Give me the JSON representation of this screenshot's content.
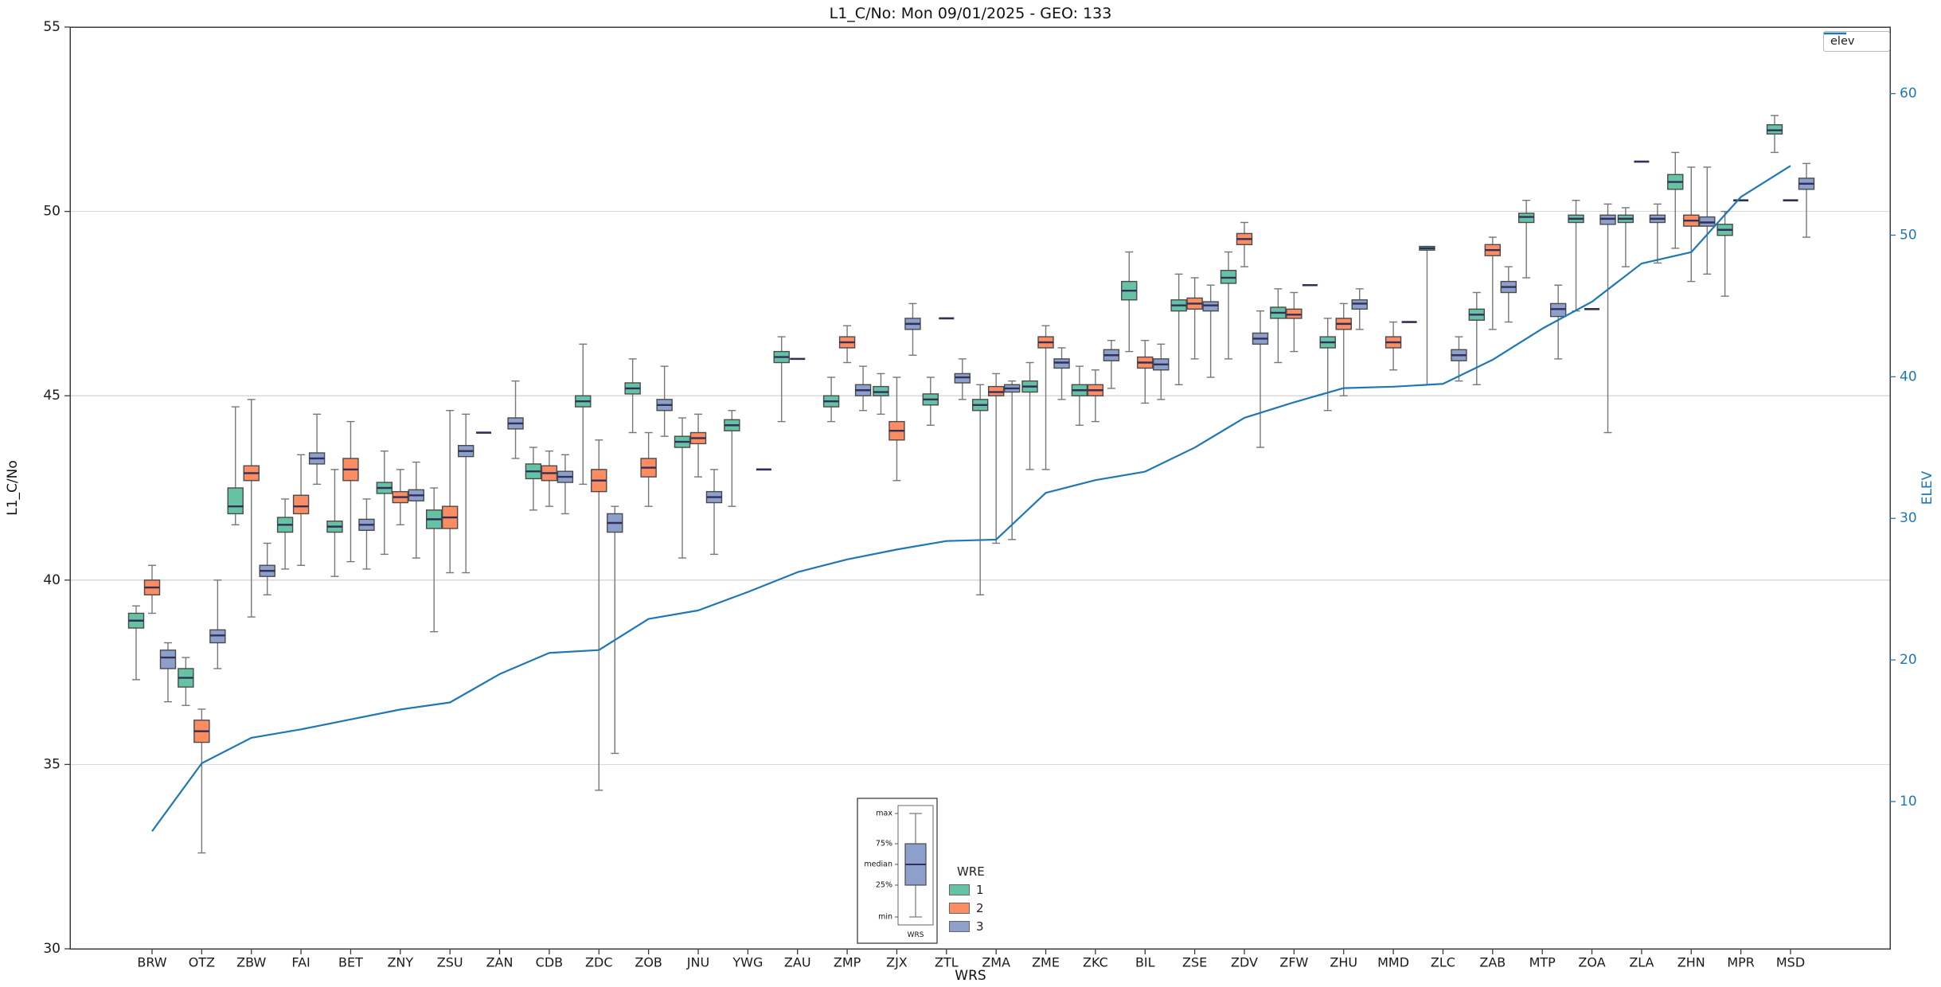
{
  "chart_data": {
    "type": "boxplot+line",
    "title": "L1_C/No: Mon 09/01/2025 - GEO: 133",
    "xlabel": "WRS",
    "ylabel_left": "L1_C/No",
    "ylabel_right": "ELEV",
    "y_left_ticks": [
      30,
      35,
      40,
      45,
      50,
      55
    ],
    "y_right_ticks": [
      10,
      20,
      30,
      40,
      50,
      60
    ],
    "y_left_range": [
      30,
      55
    ],
    "y_right_range": [
      -0.4,
      64.7
    ],
    "grid": "horizontal",
    "box_format": [
      "whisker_low",
      "q1",
      "median",
      "q3",
      "whisker_high"
    ],
    "categories": [
      "BRW",
      "OTZ",
      "ZBW",
      "FAI",
      "BET",
      "ZNY",
      "ZSU",
      "ZAN",
      "CDB",
      "ZDC",
      "ZOB",
      "JNU",
      "YWG",
      "ZAU",
      "ZMP",
      "ZJX",
      "ZTL",
      "ZMA",
      "ZME",
      "ZKC",
      "BIL",
      "ZSE",
      "ZDV",
      "ZFW",
      "ZHU",
      "MMD",
      "ZLC",
      "ZAB",
      "MTP",
      "ZOA",
      "ZLA",
      "ZHN",
      "MPR",
      "MSD"
    ],
    "series": [
      {
        "name": "WRE 1",
        "color": "#66c2a5",
        "boxes": [
          [
            37.3,
            38.7,
            38.9,
            39.1,
            39.3
          ],
          [
            36.6,
            37.1,
            37.35,
            37.6,
            37.9
          ],
          [
            41.5,
            41.8,
            42.0,
            42.5,
            44.7
          ],
          [
            40.3,
            41.3,
            41.5,
            41.7,
            42.2
          ],
          [
            40.1,
            41.3,
            41.45,
            41.6,
            43.0
          ],
          [
            40.7,
            42.35,
            42.5,
            42.65,
            43.5
          ],
          [
            38.6,
            41.4,
            41.65,
            41.9,
            42.5
          ],
          [
            44.0,
            44.0,
            44.0,
            44.0,
            44.0
          ],
          [
            41.9,
            42.75,
            42.95,
            43.15,
            43.6
          ],
          [
            42.6,
            44.7,
            44.85,
            45.0,
            46.4
          ],
          [
            44.0,
            45.05,
            45.2,
            45.35,
            46.0
          ],
          [
            40.6,
            43.6,
            43.75,
            43.9,
            44.4
          ],
          [
            42.0,
            44.05,
            44.2,
            44.35,
            44.6
          ],
          [
            44.3,
            45.9,
            46.05,
            46.2,
            46.6
          ],
          [
            44.3,
            44.7,
            44.85,
            45.0,
            45.5
          ],
          [
            44.5,
            45.0,
            45.1,
            45.25,
            45.6
          ],
          [
            44.2,
            44.75,
            44.9,
            45.05,
            45.5
          ],
          [
            39.6,
            44.6,
            44.75,
            44.9,
            45.3
          ],
          [
            43.0,
            45.1,
            45.25,
            45.4,
            45.9
          ],
          [
            44.2,
            45.0,
            45.15,
            45.3,
            45.8
          ],
          [
            46.2,
            47.6,
            47.85,
            48.1,
            48.9
          ],
          [
            45.3,
            47.3,
            47.45,
            47.6,
            48.3
          ],
          [
            46.0,
            48.05,
            48.2,
            48.4,
            48.9
          ],
          [
            45.9,
            47.1,
            47.25,
            47.4,
            47.9
          ],
          [
            44.6,
            46.3,
            46.45,
            46.6,
            47.1
          ],
          null,
          [
            45.3,
            48.95,
            49.0,
            49.05,
            49.05
          ],
          [
            45.3,
            47.05,
            47.2,
            47.35,
            47.8
          ],
          [
            48.2,
            49.7,
            49.85,
            49.95,
            50.3
          ],
          [
            47.3,
            49.7,
            49.8,
            49.9,
            50.3
          ],
          [
            48.5,
            49.7,
            49.8,
            49.9,
            50.1
          ],
          [
            49.0,
            50.6,
            50.8,
            51.0,
            51.6
          ],
          [
            47.7,
            49.35,
            49.5,
            49.65,
            50.0
          ],
          [
            51.6,
            52.1,
            52.2,
            52.35,
            52.6
          ]
        ]
      },
      {
        "name": "WRE 2",
        "color": "#fc8d62",
        "boxes": [
          [
            39.1,
            39.6,
            39.8,
            40.0,
            40.4
          ],
          [
            32.6,
            35.6,
            35.9,
            36.2,
            36.5
          ],
          [
            39.0,
            42.7,
            42.9,
            43.1,
            44.9
          ],
          [
            40.4,
            41.8,
            42.0,
            42.3,
            43.4
          ],
          [
            40.5,
            42.7,
            43.0,
            43.3,
            44.3
          ],
          [
            41.5,
            42.1,
            42.25,
            42.4,
            43.0
          ],
          [
            40.2,
            41.4,
            41.7,
            42.0,
            44.6
          ],
          null,
          [
            42.0,
            42.7,
            42.9,
            43.1,
            43.5
          ],
          [
            34.3,
            42.4,
            42.7,
            43.0,
            43.8
          ],
          [
            42.0,
            42.8,
            43.05,
            43.3,
            44.0
          ],
          [
            42.8,
            43.7,
            43.85,
            44.0,
            44.5
          ],
          null,
          [
            46.0,
            46.0,
            46.0,
            46.0,
            46.0
          ],
          [
            45.9,
            46.3,
            46.45,
            46.6,
            46.9
          ],
          [
            42.7,
            43.8,
            44.05,
            44.3,
            45.5
          ],
          [
            47.1,
            47.1,
            47.1,
            47.1,
            47.1
          ],
          [
            41.0,
            45.0,
            45.1,
            45.25,
            45.6
          ],
          [
            43.0,
            46.3,
            46.45,
            46.6,
            46.9
          ],
          [
            44.3,
            45.0,
            45.15,
            45.3,
            45.7
          ],
          [
            44.8,
            45.75,
            45.9,
            46.05,
            46.5
          ],
          [
            46.0,
            47.35,
            47.5,
            47.65,
            48.2
          ],
          [
            48.5,
            49.1,
            49.25,
            49.4,
            49.7
          ],
          [
            46.2,
            47.1,
            47.2,
            47.35,
            47.8
          ],
          [
            45.0,
            46.8,
            46.95,
            47.1,
            47.5
          ],
          [
            45.7,
            46.3,
            46.45,
            46.6,
            47.0
          ],
          null,
          [
            46.8,
            48.8,
            48.95,
            49.1,
            49.3
          ],
          null,
          [
            47.35,
            47.35,
            47.35,
            47.35,
            47.35
          ],
          [
            51.35,
            51.35,
            51.35,
            51.35,
            51.35
          ],
          [
            48.1,
            49.6,
            49.75,
            49.9,
            51.2
          ],
          [
            50.3,
            50.3,
            50.3,
            50.3,
            50.3
          ],
          [
            50.3,
            50.3,
            50.3,
            50.3,
            50.3
          ]
        ]
      },
      {
        "name": "WRE 3",
        "color": "#8da0cb",
        "boxes": [
          [
            36.7,
            37.6,
            37.9,
            38.1,
            38.3
          ],
          [
            37.6,
            38.3,
            38.5,
            38.65,
            40.0
          ],
          [
            39.6,
            40.1,
            40.25,
            40.4,
            41.0
          ],
          [
            42.6,
            43.15,
            43.3,
            43.45,
            44.5
          ],
          [
            40.3,
            41.35,
            41.5,
            41.65,
            42.2
          ],
          [
            40.6,
            42.15,
            42.3,
            42.45,
            43.2
          ],
          [
            40.2,
            43.35,
            43.5,
            43.65,
            44.5
          ],
          [
            43.3,
            44.1,
            44.25,
            44.4,
            45.4
          ],
          [
            41.8,
            42.65,
            42.8,
            42.95,
            43.4
          ],
          [
            35.3,
            41.3,
            41.55,
            41.8,
            42.0
          ],
          [
            43.9,
            44.6,
            44.75,
            44.9,
            45.8
          ],
          [
            40.7,
            42.1,
            42.25,
            42.4,
            43.0
          ],
          [
            43.0,
            43.0,
            43.0,
            43.0,
            43.0
          ],
          null,
          [
            44.6,
            45.0,
            45.15,
            45.3,
            45.8
          ],
          [
            46.1,
            46.8,
            46.95,
            47.1,
            47.5
          ],
          [
            44.9,
            45.35,
            45.5,
            45.6,
            46.0
          ],
          [
            41.1,
            45.1,
            45.2,
            45.3,
            45.4
          ],
          [
            44.9,
            45.75,
            45.9,
            46.0,
            46.3
          ],
          [
            45.2,
            45.95,
            46.1,
            46.25,
            46.5
          ],
          [
            44.9,
            45.7,
            45.85,
            46.0,
            46.4
          ],
          [
            45.5,
            47.3,
            47.45,
            47.55,
            48.0
          ],
          [
            43.6,
            46.4,
            46.55,
            46.7,
            47.3
          ],
          [
            48.0,
            48.0,
            48.0,
            48.0,
            48.0
          ],
          [
            46.8,
            47.35,
            47.5,
            47.6,
            47.9
          ],
          [
            47.0,
            47.0,
            47.0,
            47.0,
            47.0
          ],
          [
            45.4,
            45.95,
            46.1,
            46.25,
            46.6
          ],
          [
            47.0,
            47.8,
            47.95,
            48.1,
            48.5
          ],
          [
            46.0,
            47.15,
            47.35,
            47.5,
            48.0
          ],
          [
            44.0,
            49.65,
            49.8,
            49.9,
            50.2
          ],
          [
            48.6,
            49.7,
            49.8,
            49.9,
            50.2
          ],
          [
            48.3,
            49.6,
            49.7,
            49.85,
            51.2
          ],
          null,
          [
            49.3,
            50.6,
            50.75,
            50.9,
            51.3
          ]
        ]
      }
    ],
    "elev_line": {
      "name": "elev",
      "color": "#1f77b4",
      "axis": "right",
      "values": [
        7.9,
        12.7,
        14.5,
        15.1,
        15.8,
        16.5,
        17.0,
        19.0,
        20.5,
        20.7,
        22.9,
        23.5,
        24.8,
        26.2,
        27.1,
        27.8,
        28.4,
        28.5,
        31.8,
        32.7,
        33.3,
        35.0,
        37.1,
        38.2,
        39.2,
        39.3,
        39.5,
        41.2,
        43.4,
        45.3,
        48.0,
        48.8,
        52.7,
        54.9
      ]
    },
    "legend_line": {
      "label": "elev"
    },
    "legend_box": {
      "title": "WRE",
      "entries": [
        {
          "label": "1",
          "color": "#66c2a5"
        },
        {
          "label": "2",
          "color": "#fc8d62"
        },
        {
          "label": "3",
          "color": "#8da0cb"
        }
      ]
    },
    "inset_legend": {
      "labels": [
        "max",
        "75%",
        "median",
        "25%",
        "min"
      ],
      "xlabel": "WRS",
      "box_color": "#8da0cb"
    },
    "colors": {
      "median": "#30305a",
      "box_edge": "#4a4a4a",
      "whisker": "#777777",
      "spine": "#3c3c3c",
      "grid": "#d9d9d9",
      "right_axis": "#1f77b4",
      "tick_label": "#1a1a1a"
    }
  }
}
